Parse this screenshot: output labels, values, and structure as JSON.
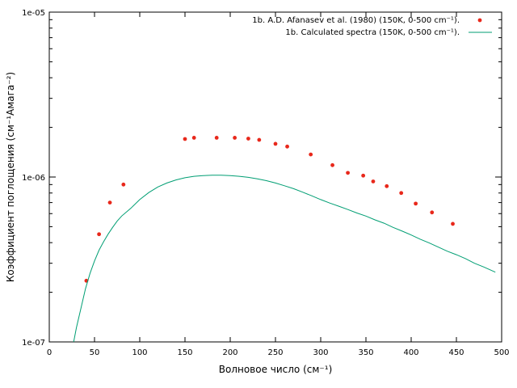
{
  "chart_data": {
    "type": "scatter",
    "xlabel": "Волновое число (см⁻¹)",
    "ylabel": "Коэффициент поглощения (см⁻¹Амага⁻²)",
    "xlim": [
      0,
      500
    ],
    "ylim": [
      1e-07,
      1e-05
    ],
    "yscale": "log",
    "grid": false,
    "legend_position": "top-right",
    "x_ticks": [
      "0",
      "50",
      "100",
      "150",
      "200",
      "250",
      "300",
      "350",
      "400",
      "450",
      "500"
    ],
    "y_ticks": [
      "1e-07",
      "1e-06",
      "1e-05"
    ],
    "series": [
      {
        "name": "1b. A.D. Afanasev et al. (1980) (150K, 0-500 cm⁻¹).",
        "kind": "points",
        "color": "#e8281b",
        "x": [
          41,
          55,
          67,
          82,
          150,
          160,
          185,
          205,
          220,
          232,
          250,
          263,
          289,
          313,
          330,
          347,
          358,
          373,
          389,
          405,
          423,
          446
        ],
        "y": [
          2.35e-07,
          4.5e-07,
          7e-07,
          9e-07,
          1.7e-06,
          1.73e-06,
          1.73e-06,
          1.73e-06,
          1.71e-06,
          1.68e-06,
          1.59e-06,
          1.53e-06,
          1.37e-06,
          1.18e-06,
          1.06e-06,
          1.02e-06,
          9.4e-07,
          8.8e-07,
          8e-07,
          6.9e-07,
          6.1e-07,
          5.2e-07
        ]
      },
      {
        "name": "1b. Calculated spectra (150K, 0-500 cm⁻¹).",
        "kind": "line",
        "color": "#009e73",
        "x": [
          27,
          30,
          35,
          40,
          45,
          50,
          55,
          60,
          65,
          70,
          75,
          80,
          90,
          100,
          110,
          120,
          130,
          140,
          150,
          160,
          170,
          180,
          190,
          200,
          210,
          220,
          230,
          240,
          250,
          260,
          270,
          280,
          290,
          300,
          310,
          320,
          330,
          340,
          350,
          360,
          370,
          380,
          390,
          400,
          410,
          420,
          430,
          440,
          450,
          460,
          470,
          480,
          493
        ],
        "y": [
          1e-07,
          1.22e-07,
          1.6e-07,
          2.1e-07,
          2.6e-07,
          3.1e-07,
          3.6e-07,
          4.05e-07,
          4.5e-07,
          4.95e-07,
          5.4e-07,
          5.8e-07,
          6.45e-07,
          7.3e-07,
          8.05e-07,
          8.7e-07,
          9.2e-07,
          9.6e-07,
          9.9e-07,
          1.01e-06,
          1.02e-06,
          1.025e-06,
          1.025e-06,
          1.02e-06,
          1.01e-06,
          9.95e-07,
          9.75e-07,
          9.5e-07,
          9.2e-07,
          8.85e-07,
          8.5e-07,
          8.1e-07,
          7.7e-07,
          7.3e-07,
          6.95e-07,
          6.65e-07,
          6.35e-07,
          6.05e-07,
          5.8e-07,
          5.5e-07,
          5.25e-07,
          4.95e-07,
          4.7e-07,
          4.45e-07,
          4.2e-07,
          3.98e-07,
          3.76e-07,
          3.55e-07,
          3.38e-07,
          3.2e-07,
          3e-07,
          2.85e-07,
          2.65e-07
        ]
      }
    ]
  }
}
